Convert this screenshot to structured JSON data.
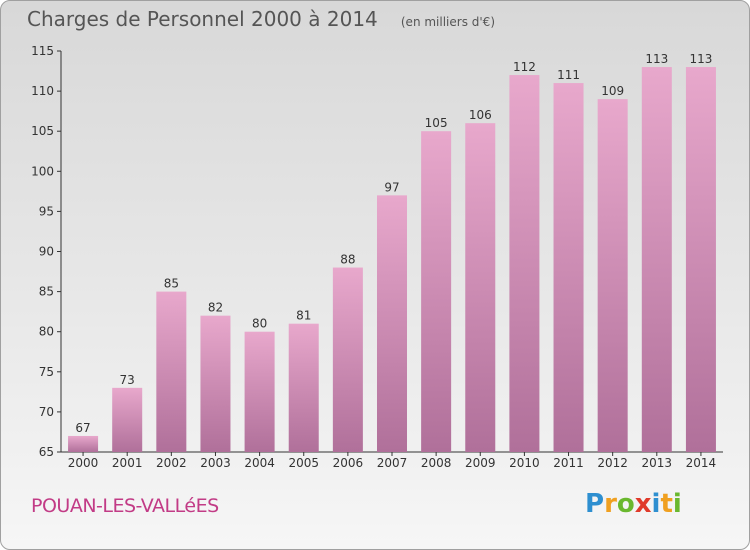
{
  "title": "Charges de Personnel 2000 à 2014",
  "subtitle": "(en milliers d'€)",
  "commune": "POUAN-LES-VALLéES",
  "logo": {
    "letters": [
      "P",
      "r",
      "o",
      "x",
      "i",
      "t",
      "i"
    ],
    "colors": [
      "#2e8fd0",
      "#f0a020",
      "#6ab82e",
      "#e03a2a",
      "#2e8fd0",
      "#f0a020",
      "#6ab82e"
    ]
  },
  "colors": {
    "bar_light": "#e8a8cc",
    "bar_dark": "#b0709a",
    "title": "#555555",
    "commune": "#c23b86"
  },
  "chart_data": {
    "type": "bar",
    "categories": [
      "2000",
      "2001",
      "2002",
      "2003",
      "2004",
      "2005",
      "2006",
      "2007",
      "2008",
      "2009",
      "2010",
      "2011",
      "2012",
      "2013",
      "2014"
    ],
    "values": [
      67,
      73,
      85,
      82,
      80,
      81,
      88,
      97,
      105,
      106,
      112,
      111,
      109,
      113,
      113
    ],
    "ylim": [
      65,
      115
    ],
    "yticks": [
      65,
      70,
      75,
      80,
      85,
      90,
      95,
      100,
      105,
      110,
      115
    ],
    "grid": false
  }
}
